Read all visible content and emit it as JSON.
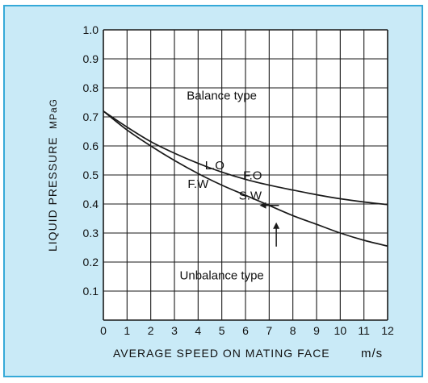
{
  "chart_data": {
    "type": "line",
    "xlabel": "AVERAGE SPEED ON MATING FACE",
    "xunit": "m/s",
    "ylabel": "LIQUID PRESSURE",
    "yunit": "MPaG",
    "xlim": [
      0,
      12
    ],
    "ylim": [
      0,
      1.0
    ],
    "x_ticks": [
      "0",
      "1",
      "2",
      "3",
      "4",
      "5",
      "6",
      "7",
      "8",
      "9",
      "10",
      "11",
      "12"
    ],
    "y_ticks": [
      "0.1",
      "0.2",
      "0.3",
      "0.4",
      "0.5",
      "0.6",
      "0.7",
      "0.8",
      "0.9",
      "1.0"
    ],
    "grid": true,
    "series": [
      {
        "name": "L.O F.O",
        "x": [
          0,
          1,
          2,
          3,
          4,
          5,
          6,
          7,
          8,
          9,
          10,
          11,
          12
        ],
        "y": [
          0.72,
          0.665,
          0.615,
          0.575,
          0.54,
          0.51,
          0.485,
          0.465,
          0.448,
          0.432,
          0.418,
          0.407,
          0.398
        ]
      },
      {
        "name": "F.W S.W",
        "x": [
          0,
          1,
          2,
          3,
          4,
          5,
          6,
          7,
          8,
          9,
          10,
          11,
          12
        ],
        "y": [
          0.72,
          0.655,
          0.6,
          0.55,
          0.505,
          0.465,
          0.43,
          0.395,
          0.36,
          0.33,
          0.3,
          0.275,
          0.255
        ]
      }
    ],
    "annotations": [
      {
        "text": "Balance type",
        "x": 5.0,
        "y": 0.76
      },
      {
        "text": "Unbalance type",
        "x": 5.0,
        "y": 0.14
      },
      {
        "text": "L.O",
        "x": 4.7,
        "y": 0.52
      },
      {
        "text": "F.O",
        "x": 6.3,
        "y": 0.485
      },
      {
        "text": "F.W",
        "x": 4.0,
        "y": 0.455
      },
      {
        "text": "S.W",
        "x": 6.2,
        "y": 0.415
      }
    ],
    "arrows": [
      {
        "direction": "left",
        "x": 6.8,
        "y": 0.395
      },
      {
        "direction": "up",
        "x": 7.3,
        "y": 0.32
      }
    ],
    "colors": {
      "background": "#c9eaf7",
      "border": "#35a9d8",
      "line": "#1a1a1a"
    }
  }
}
